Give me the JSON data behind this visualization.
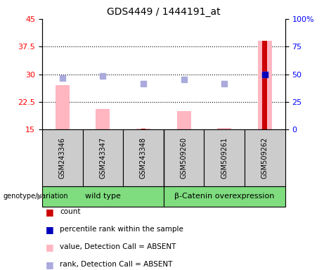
{
  "title": "GDS4449 / 1444191_at",
  "samples": [
    "GSM243346",
    "GSM243347",
    "GSM243348",
    "GSM509260",
    "GSM509261",
    "GSM509262"
  ],
  "wild_type_count": 3,
  "beta_catenin_count": 3,
  "group_labels": [
    "wild type",
    "β-Catenin overexpression"
  ],
  "ylim_left": [
    15,
    45
  ],
  "ylim_right": [
    0,
    100
  ],
  "yticks_left": [
    15,
    22.5,
    30,
    37.5,
    45
  ],
  "yticks_right": [
    0,
    25,
    50,
    75,
    100
  ],
  "ytick_labels_right": [
    "0",
    "25",
    "50",
    "75",
    "100%"
  ],
  "pink_bar_tops": [
    27.0,
    20.5,
    15.3,
    20.0,
    15.5,
    39.0
  ],
  "blue_square_values": [
    29.0,
    29.5,
    27.5,
    28.5,
    27.5,
    30.0
  ],
  "red_bar_tops": [
    null,
    null,
    15.3,
    null,
    null,
    39.0
  ],
  "blue_dot_values": [
    null,
    null,
    null,
    null,
    null,
    30.0
  ],
  "pink_bar_color": "#FFB6C1",
  "blue_square_color": "#AAAADD",
  "red_bar_color": "#CC0000",
  "blue_dot_color": "#0000BB",
  "pink_bar_width": 0.35,
  "red_bar_width": 0.12,
  "grid_color": "black",
  "bg_gray": "#CCCCCC",
  "bg_green": "#7FDD7F",
  "legend_items": [
    {
      "label": "count",
      "color": "#CC0000"
    },
    {
      "label": "percentile rank within the sample",
      "color": "#0000BB"
    },
    {
      "label": "value, Detection Call = ABSENT",
      "color": "#FFB6C1"
    },
    {
      "label": "rank, Detection Call = ABSENT",
      "color": "#AAAADD"
    }
  ]
}
